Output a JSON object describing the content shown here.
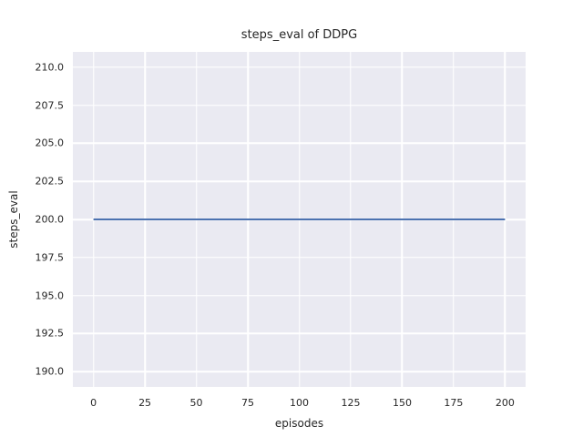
{
  "figure": {
    "background": "#FFFFFF"
  },
  "chart_data": {
    "type": "line",
    "title": "steps_eval of DDPG",
    "xlabel": "episodes",
    "ylabel": "steps_eval",
    "xlim": [
      -10,
      210
    ],
    "ylim": [
      189,
      211
    ],
    "x_ticks": [
      0,
      25,
      50,
      75,
      100,
      125,
      150,
      175,
      200
    ],
    "x_tick_labels": [
      "0",
      "25",
      "50",
      "75",
      "100",
      "125",
      "150",
      "175",
      "200"
    ],
    "y_ticks": [
      190.0,
      192.5,
      195.0,
      197.5,
      200.0,
      202.5,
      205.0,
      207.5,
      210.0
    ],
    "y_tick_labels": [
      "190.0",
      "192.5",
      "195.0",
      "197.5",
      "200.0",
      "202.5",
      "205.0",
      "207.5",
      "210.0"
    ],
    "grid": true,
    "legend": "none",
    "plot_background": "#EAEAF2",
    "grid_color": "#FFFFFF",
    "text_color": "#262626",
    "series": [
      {
        "name": "steps_eval",
        "color": "#4C72B0",
        "line_width": 2,
        "x": [
          0,
          200
        ],
        "y": [
          200,
          200
        ]
      }
    ]
  }
}
